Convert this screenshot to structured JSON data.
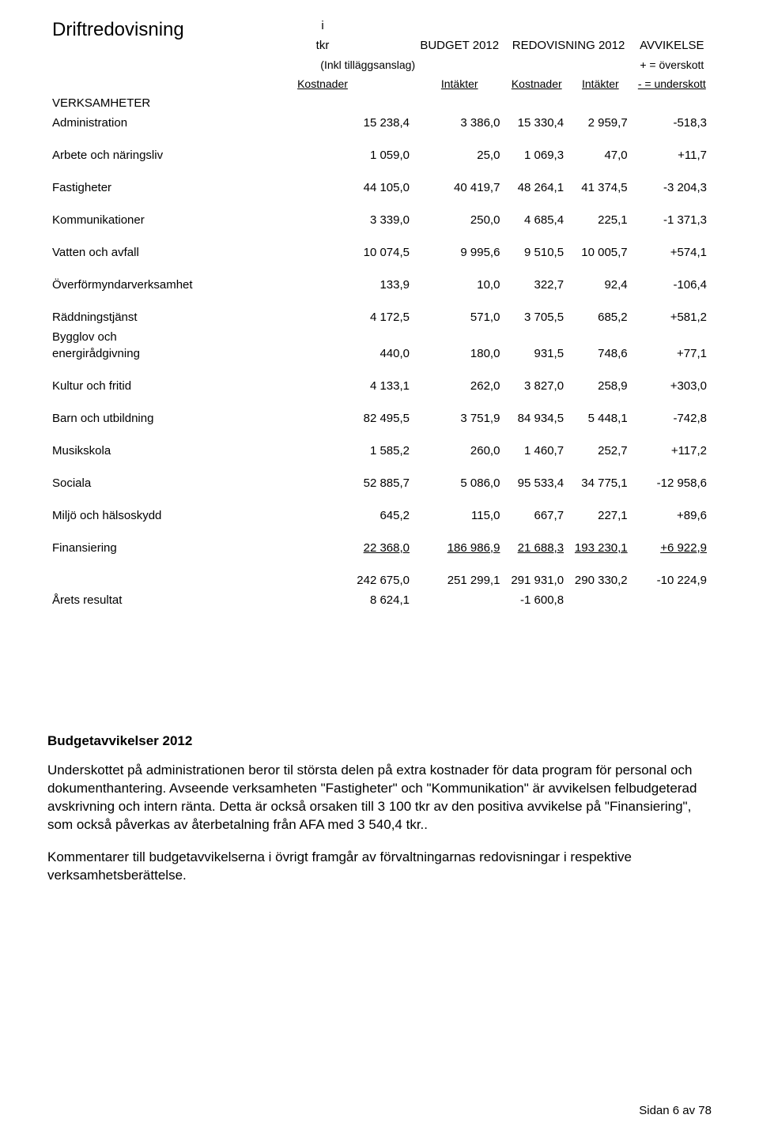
{
  "title": "Driftredovisning",
  "header": {
    "i_tkr_top": "i",
    "i_tkr_bottom": "tkr",
    "budget": "BUDGET 2012",
    "redovisning": "REDOVISNING 2012",
    "avvikelse": "AVVIKELSE",
    "inkl": "(Inkl tilläggsanslag)",
    "plus": "+ = överskott",
    "kostnader": "Kostnader",
    "intakter": "Intäkter",
    "minus": "- = underskott"
  },
  "section_label": "VERKSAMHETER",
  "rows": [
    {
      "label": "Administration",
      "v": [
        "15 238,4",
        "3 386,0",
        "15 330,4",
        "2 959,7",
        "-518,3"
      ]
    },
    {
      "label": "Arbete och näringsliv",
      "v": [
        "1 059,0",
        "25,0",
        "1 069,3",
        "47,0",
        "+11,7"
      ]
    },
    {
      "label": "Fastigheter",
      "v": [
        "44 105,0",
        "40 419,7",
        "48 264,1",
        "41 374,5",
        "-3 204,3"
      ]
    },
    {
      "label": "Kommunikationer",
      "v": [
        "3 339,0",
        "250,0",
        "4 685,4",
        "225,1",
        "-1 371,3"
      ]
    },
    {
      "label": "Vatten och avfall",
      "v": [
        "10 074,5",
        "9 995,6",
        "9 510,5",
        "10 005,7",
        "+574,1"
      ]
    },
    {
      "label": "Överförmyndarverksamhet",
      "v": [
        "133,9",
        "10,0",
        "322,7",
        "92,4",
        "-106,4"
      ]
    },
    {
      "label": "Räddningstjänst",
      "v": [
        "4 172,5",
        "571,0",
        "3 705,5",
        "685,2",
        "+581,2"
      ],
      "tight_below": true
    },
    {
      "label": "Bygglov och energirådgivning",
      "v": [
        "440,0",
        "180,0",
        "931,5",
        "748,6",
        "+77,1"
      ],
      "two_line": true
    },
    {
      "label": "Kultur och fritid",
      "v": [
        "4 133,1",
        "262,0",
        "3 827,0",
        "258,9",
        "+303,0"
      ]
    },
    {
      "label": "Barn och utbildning",
      "v": [
        "82 495,5",
        "3 751,9",
        "84 934,5",
        "5 448,1",
        "-742,8"
      ]
    },
    {
      "label": "Musikskola",
      "v": [
        "1 585,2",
        "260,0",
        "1 460,7",
        "252,7",
        "+117,2"
      ]
    },
    {
      "label": "Sociala",
      "v": [
        "52 885,7",
        "5 086,0",
        "95 533,4",
        "34 775,1",
        "-12 958,6"
      ]
    },
    {
      "label": "Miljö och hälsoskydd",
      "v": [
        "645,2",
        "115,0",
        "667,7",
        "227,1",
        "+89,6"
      ]
    },
    {
      "label": "Finansiering",
      "v": [
        "22 368,0",
        "186 986,9",
        "21 688,3",
        "193 230,1",
        "+6 922,9"
      ],
      "rule_above_last": false
    },
    {
      "label": "",
      "v": [
        "242 675,0",
        "251 299,1",
        "291 931,0",
        "290 330,2",
        "-10 224,9"
      ],
      "total": true
    },
    {
      "label": "Årets resultat",
      "v": [
        "8 624,1",
        "",
        "-1 600,8",
        "",
        ""
      ]
    }
  ],
  "post_heading": "Budgetavvikelser 2012",
  "para1": "Underskottet på administrationen beror til största delen på extra kostnader för data program för personal och dokumenthantering. Avseende verksamheten \"Fastigheter\" och \"Kommunikation\" är avvikelsen felbudgeterad avskrivning och intern ränta. Detta är också orsaken till 3 100 tkr av den positiva avvikelse på \"Finansiering\", som också påverkas av återbetalning från AFA med 3 540,4 tkr..",
  "para2": "Kommentarer till budgetavvikelserna i övrigt framgår av förvaltningarnas redovisningar i respektive verksamhetsberättelse.",
  "footer": "Sidan 6 av 78"
}
